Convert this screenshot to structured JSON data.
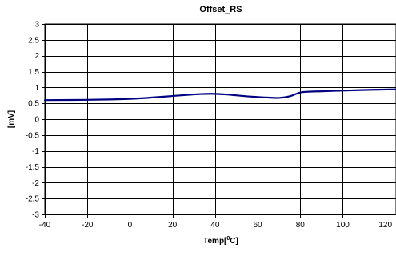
{
  "chart_data": {
    "type": "line",
    "title": "Offset_RS",
    "xlabel_main": "Temp[",
    "xlabel_sup": "0",
    "xlabel_tail": "C]",
    "ylabel": "[mV]",
    "xlim": [
      -40,
      125
    ],
    "ylim": [
      -3,
      3
    ],
    "x_ticks": [
      -40,
      -20,
      0,
      20,
      40,
      60,
      80,
      100,
      120
    ],
    "y_ticks": [
      3,
      2.5,
      2,
      1.5,
      1,
      0.5,
      0,
      -0.5,
      -1,
      -1.5,
      -2,
      -2.5,
      -3
    ],
    "x_tick_labels": [
      "-40",
      "-20",
      "0",
      "20",
      "40",
      "60",
      "80",
      "100",
      "120"
    ],
    "y_tick_labels": [
      "3",
      "2.5",
      "2",
      "1.5",
      "1",
      "0.5",
      "0",
      "-0.5",
      "-1",
      "-1.5",
      "-2",
      "-2.5",
      "-3"
    ],
    "grid": true,
    "series": [
      {
        "color": "#000080",
        "x": [
          -40,
          -20,
          0,
          10,
          20,
          30,
          38,
          45,
          55,
          65,
          70,
          75,
          80,
          85,
          90,
          100,
          110,
          125
        ],
        "y": [
          0.6,
          0.61,
          0.64,
          0.68,
          0.73,
          0.78,
          0.8,
          0.78,
          0.72,
          0.68,
          0.67,
          0.72,
          0.84,
          0.87,
          0.88,
          0.9,
          0.92,
          0.94
        ]
      }
    ]
  }
}
